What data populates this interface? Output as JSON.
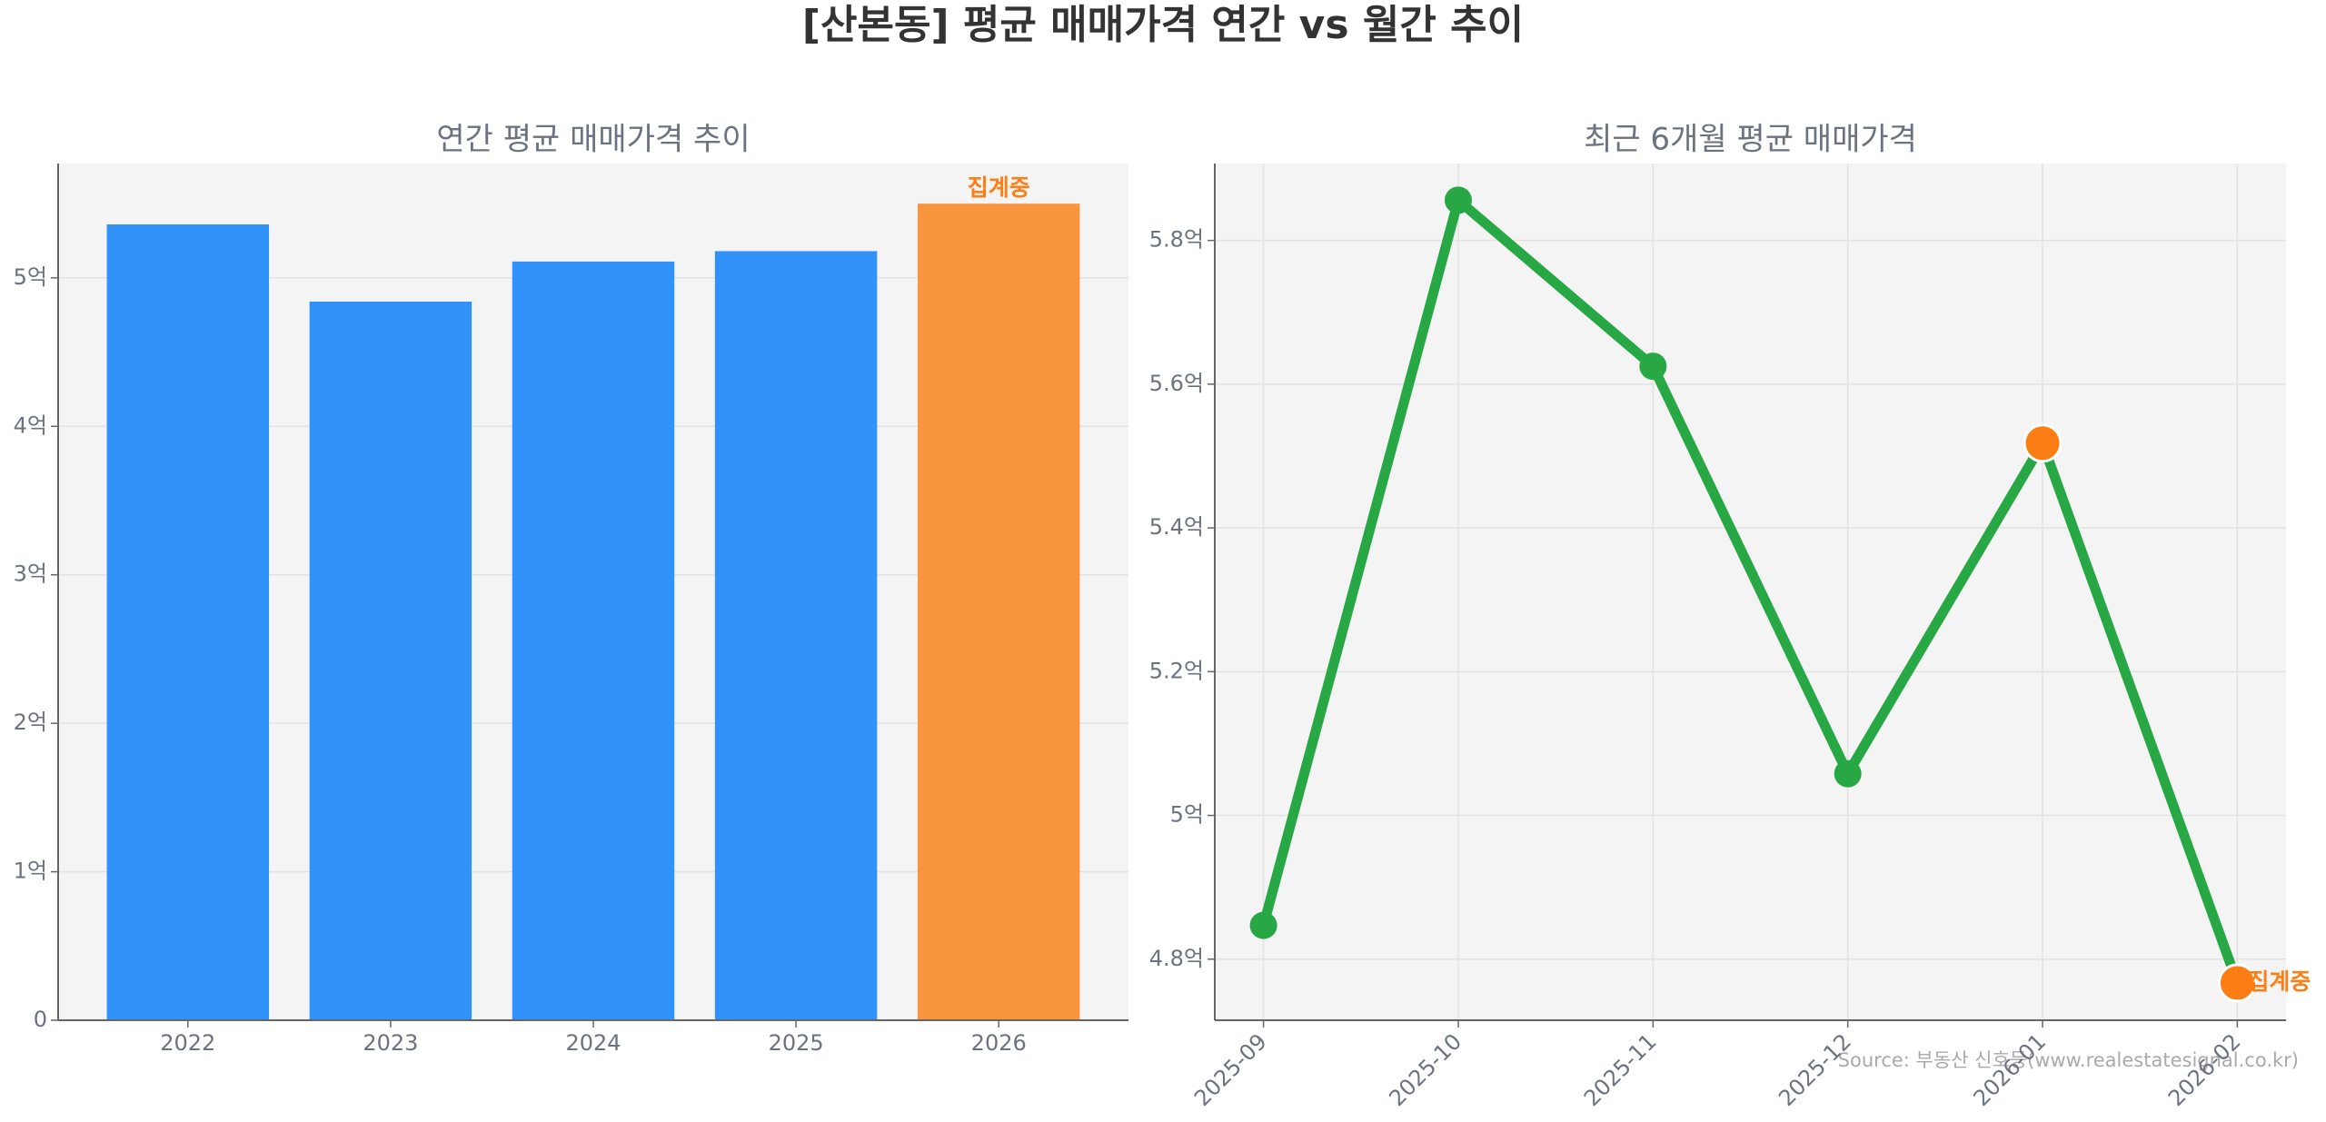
{
  "title": "[산본동] 평균 매매가격 연간 vs 월간 추이",
  "source": "Source: 부동산 신호등(www.realestatesignal.co.kr)",
  "chart_data": [
    {
      "type": "bar",
      "title": "연간 평균 매매가격 추이",
      "categories": [
        "2022",
        "2023",
        "2024",
        "2025",
        "2026"
      ],
      "values": [
        5.36,
        4.84,
        5.11,
        5.18,
        5.5
      ],
      "colors": [
        "#3192fa",
        "#3192fa",
        "#3192fa",
        "#3192fa",
        "#f89640"
      ],
      "annotation": "집계중",
      "ylim": [
        0,
        5.77
      ],
      "yticks": [
        {
          "value": 0,
          "label": "0"
        },
        {
          "value": 1,
          "label": "1억"
        },
        {
          "value": 2,
          "label": "2억"
        },
        {
          "value": 3,
          "label": "3억"
        },
        {
          "value": 4,
          "label": "4억"
        },
        {
          "value": 5,
          "label": "5억"
        }
      ],
      "grid": true
    },
    {
      "type": "line",
      "title": "최근 6개월 평균 매매가격",
      "categories": [
        "2025-09",
        "2025-10",
        "2025-11",
        "2025-12",
        "2026-01",
        "2026-02"
      ],
      "values": [
        4.847,
        5.856,
        5.625,
        5.058,
        5.518,
        4.767
      ],
      "color": "#28a745",
      "marker_colors": [
        "#28a745",
        "#28a745",
        "#28a745",
        "#28a745",
        "#fd7e14",
        "#fd7e14"
      ],
      "annotation": "집계중",
      "ylim": [
        4.715,
        5.907
      ],
      "yticks": [
        {
          "value": 4.8,
          "label": "4.8억"
        },
        {
          "value": 5.0,
          "label": "5억"
        },
        {
          "value": 5.2,
          "label": "5.2억"
        },
        {
          "value": 5.4,
          "label": "5.4억"
        },
        {
          "value": 5.6,
          "label": "5.6억"
        },
        {
          "value": 5.8,
          "label": "5.8억"
        }
      ],
      "grid": true
    }
  ]
}
